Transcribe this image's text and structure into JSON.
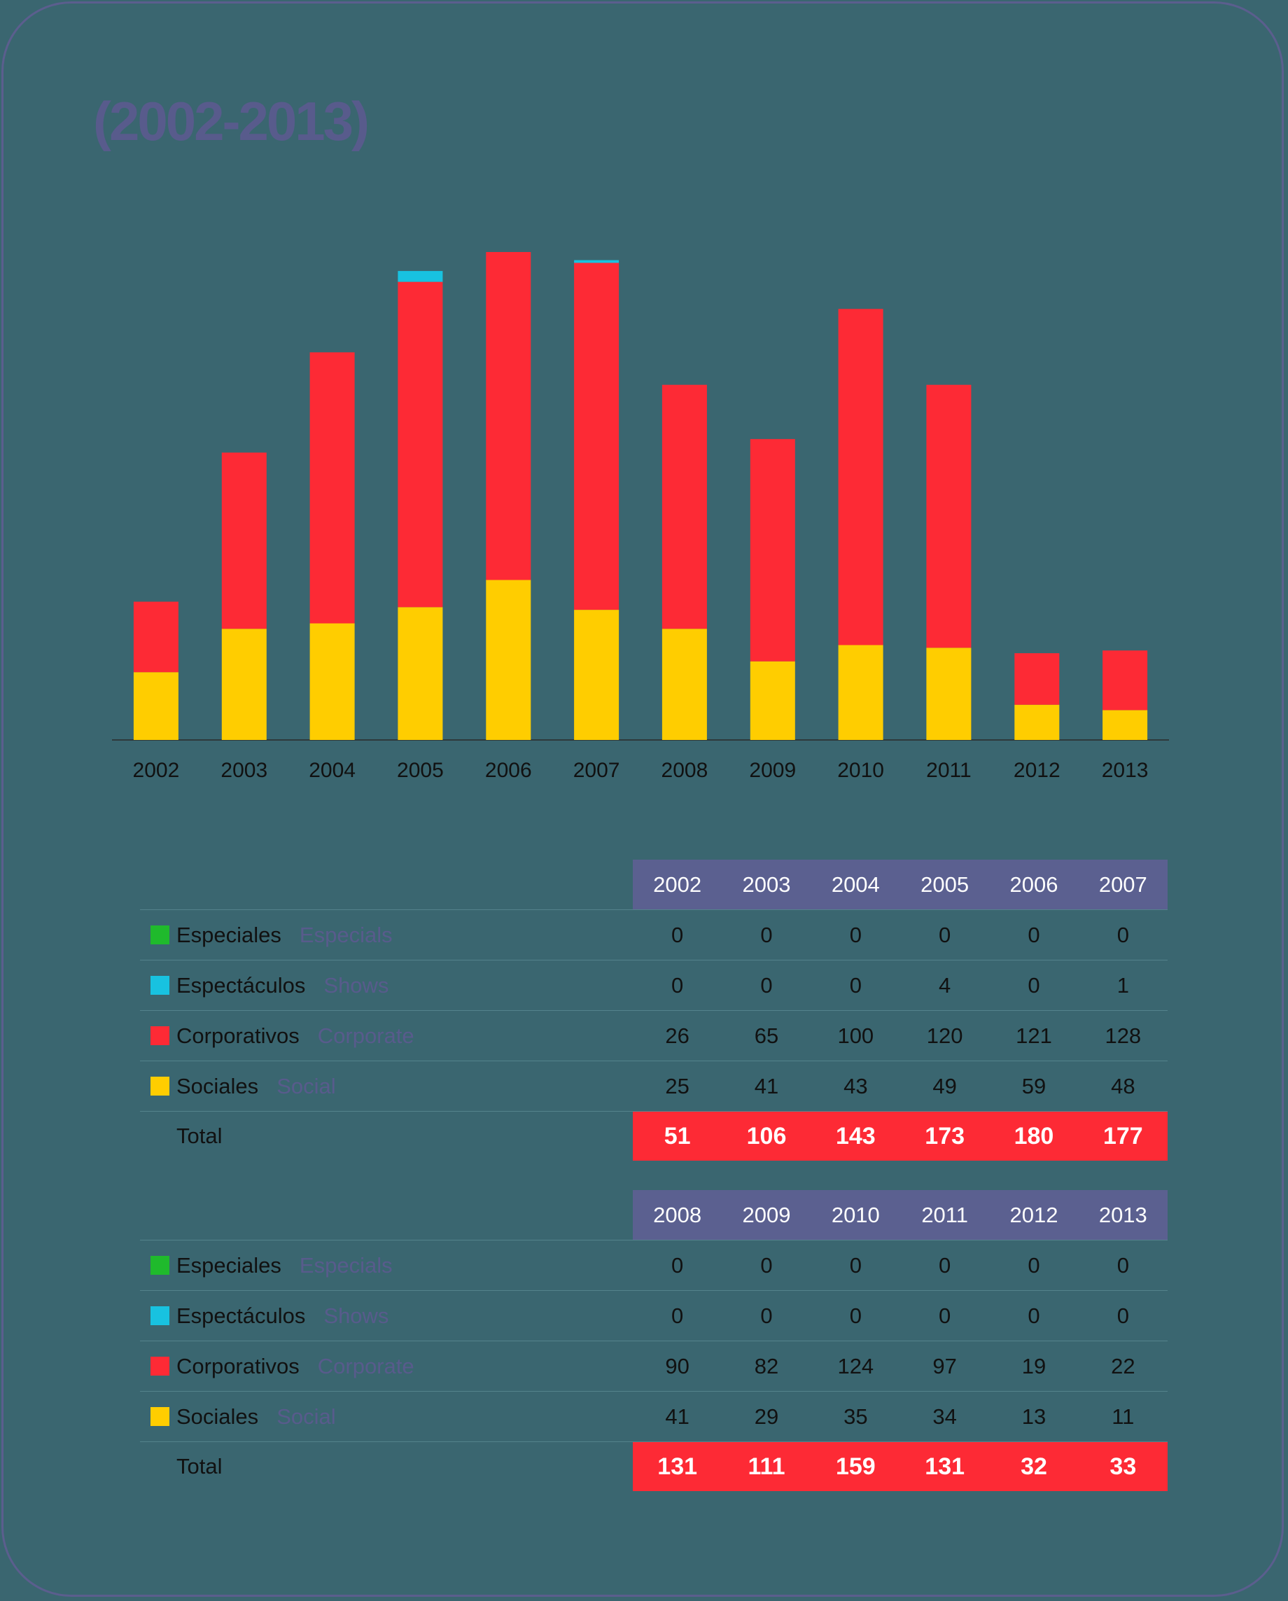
{
  "title": "(2002-2013)",
  "colors": {
    "background": "#3a6670",
    "especiales": "#1fba2c",
    "espectaculos": "#18c2e0",
    "corporativos": "#fd2a35",
    "sociales": "#ffcd00",
    "header": "#5b6090",
    "title": "#585b8c"
  },
  "chart_data": {
    "type": "bar",
    "stacked": true,
    "title": "(2002-2013)",
    "categories": [
      "2002",
      "2003",
      "2004",
      "2005",
      "2006",
      "2007",
      "2008",
      "2009",
      "2010",
      "2011",
      "2012",
      "2013"
    ],
    "series": [
      {
        "name": "Sociales",
        "color": "#ffcd00",
        "values": [
          25,
          41,
          43,
          49,
          59,
          48,
          41,
          29,
          35,
          34,
          13,
          11
        ]
      },
      {
        "name": "Corporativos",
        "color": "#fd2a35",
        "values": [
          26,
          65,
          100,
          120,
          121,
          128,
          90,
          82,
          124,
          97,
          19,
          22
        ]
      },
      {
        "name": "Espectáculos",
        "color": "#18c2e0",
        "values": [
          0,
          0,
          0,
          4,
          0,
          1,
          0,
          0,
          0,
          0,
          0,
          0
        ]
      },
      {
        "name": "Especiales",
        "color": "#1fba2c",
        "values": [
          0,
          0,
          0,
          0,
          0,
          0,
          0,
          0,
          0,
          0,
          0,
          0
        ]
      }
    ],
    "xlabel": "",
    "ylabel": "",
    "ylim": [
      0,
      185
    ],
    "grid": false,
    "legend": "table-below"
  },
  "tables": [
    {
      "years": [
        "2002",
        "2003",
        "2004",
        "2005",
        "2006",
        "2007"
      ],
      "rows": [
        {
          "es": "Especiales",
          "en": "Especials",
          "color": "#1fba2c",
          "values": [
            "0",
            "0",
            "0",
            "0",
            "0",
            "0"
          ]
        },
        {
          "es": "Espectáculos",
          "en": "Shows",
          "color": "#18c2e0",
          "values": [
            "0",
            "0",
            "0",
            "4",
            "0",
            "1"
          ]
        },
        {
          "es": "Corporativos",
          "en": "Corporate",
          "color": "#fd2a35",
          "values": [
            "26",
            "65",
            "100",
            "120",
            "121",
            "128"
          ]
        },
        {
          "es": "Sociales",
          "en": "Social",
          "color": "#ffcd00",
          "values": [
            "25",
            "41",
            "43",
            "49",
            "59",
            "48"
          ]
        }
      ],
      "total_label": "Total",
      "totals": [
        "51",
        "106",
        "143",
        "173",
        "180",
        "177"
      ]
    },
    {
      "years": [
        "2008",
        "2009",
        "2010",
        "2011",
        "2012",
        "2013"
      ],
      "rows": [
        {
          "es": "Especiales",
          "en": "Especials",
          "color": "#1fba2c",
          "values": [
            "0",
            "0",
            "0",
            "0",
            "0",
            "0"
          ]
        },
        {
          "es": "Espectáculos",
          "en": "Shows",
          "color": "#18c2e0",
          "values": [
            "0",
            "0",
            "0",
            "0",
            "0",
            "0"
          ]
        },
        {
          "es": "Corporativos",
          "en": "Corporate",
          "color": "#fd2a35",
          "values": [
            "90",
            "82",
            "124",
            "97",
            "19",
            "22"
          ]
        },
        {
          "es": "Sociales",
          "en": "Social",
          "color": "#ffcd00",
          "values": [
            "41",
            "29",
            "35",
            "34",
            "13",
            "11"
          ]
        }
      ],
      "total_label": "Total",
      "totals": [
        "131",
        "111",
        "159",
        "131",
        "32",
        "33"
      ]
    }
  ]
}
